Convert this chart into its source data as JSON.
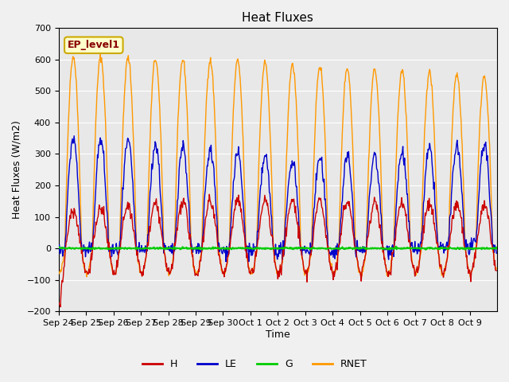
{
  "title": "Heat Fluxes",
  "ylabel": "Heat Fluxes (W/m2)",
  "xlabel": "Time",
  "ylim": [
    -200,
    700
  ],
  "yticks": [
    -200,
    -100,
    0,
    100,
    200,
    300,
    400,
    500,
    600,
    700
  ],
  "x_tick_labels": [
    "Sep 24",
    "Sep 25",
    "Sep 26",
    "Sep 27",
    "Sep 28",
    "Sep 29",
    "Sep 30",
    "Oct 1",
    "Oct 2",
    "Oct 3",
    "Oct 4",
    "Oct 5",
    "Oct 6",
    "Oct 7",
    "Oct 8",
    "Oct 9"
  ],
  "colors": {
    "H": "#cc0000",
    "LE": "#0000cc",
    "G": "#00cc00",
    "RNET": "#ff9900"
  },
  "annotation": "EP_level1",
  "annotation_box_color": "#ffffcc",
  "annotation_box_edgecolor": "#ccaa00",
  "background_color": "#e8e8e8",
  "grid_color": "#ffffff",
  "n_days": 16,
  "n_points_per_day": 48
}
